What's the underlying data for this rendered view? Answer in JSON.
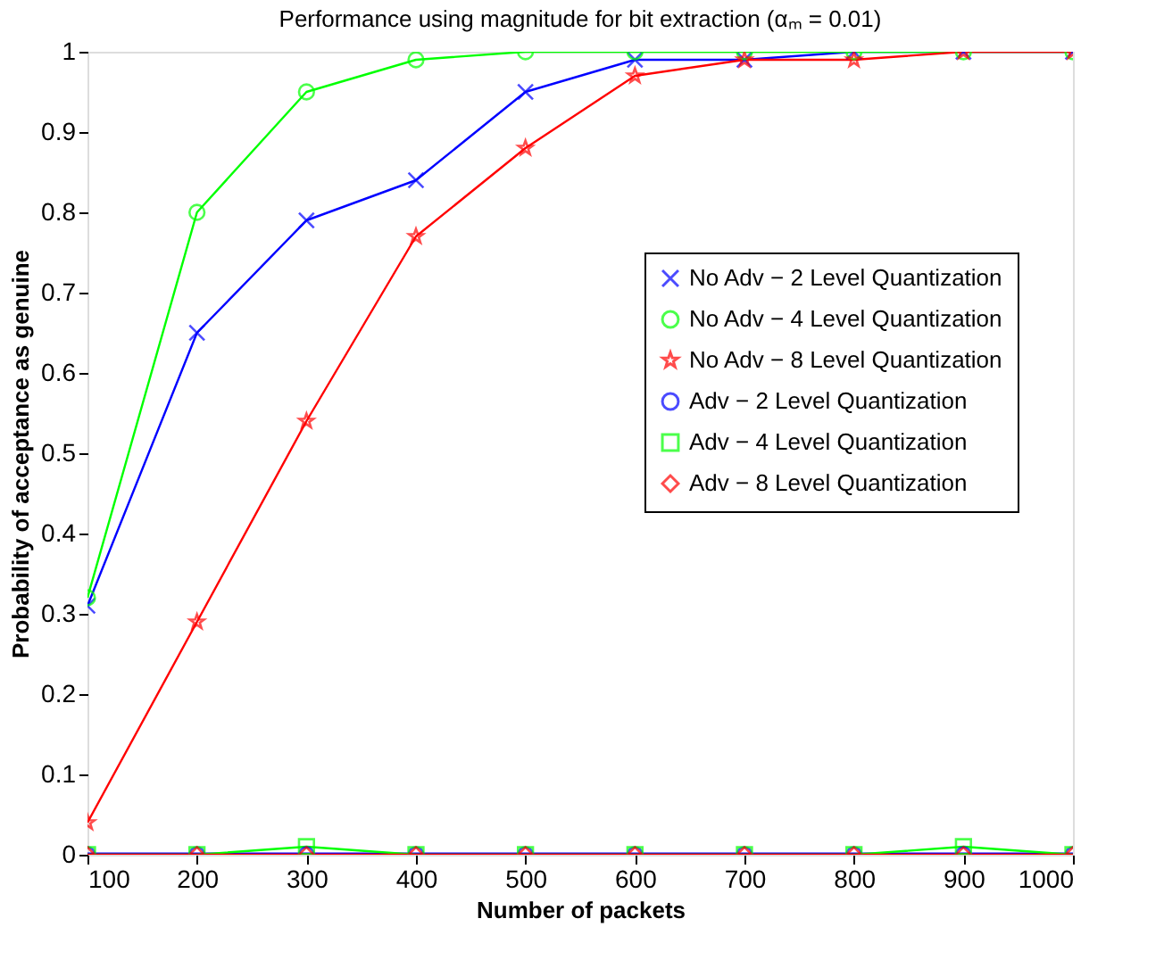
{
  "chart_data": {
    "type": "line",
    "title": "Performance using magnitude for bit extraction (αₘ = 0.01)",
    "xlabel": "Number of packets",
    "ylabel": "Probability of acceptance as genuine",
    "x": [
      100,
      200,
      300,
      400,
      500,
      600,
      700,
      800,
      900,
      1000
    ],
    "series": [
      {
        "name": "No Adv − 2 Level Quantization",
        "color": "#0000ff",
        "marker": "cross",
        "values": [
          0.31,
          0.65,
          0.79,
          0.84,
          0.95,
          0.99,
          0.99,
          1.0,
          1.0,
          1.0
        ]
      },
      {
        "name": "No Adv − 4 Level Quantization",
        "color": "#00ff00",
        "marker": "circle",
        "values": [
          0.32,
          0.8,
          0.95,
          0.99,
          1.0,
          1.0,
          1.0,
          1.0,
          1.0,
          1.0
        ]
      },
      {
        "name": "No Adv − 8 Level Quantization",
        "color": "#ff0000",
        "marker": "star",
        "values": [
          0.04,
          0.29,
          0.54,
          0.77,
          0.88,
          0.97,
          0.99,
          0.99,
          1.0,
          1.0
        ]
      },
      {
        "name": "Adv − 2 Level Quantization",
        "color": "#0000ff",
        "marker": "circle",
        "values": [
          0,
          0,
          0,
          0,
          0,
          0,
          0,
          0,
          0,
          0
        ]
      },
      {
        "name": "Adv − 4 Level Quantization",
        "color": "#00ff00",
        "marker": "square",
        "values": [
          0,
          0,
          0.01,
          0,
          0,
          0,
          0,
          0,
          0.01,
          0
        ]
      },
      {
        "name": "Adv − 8 Level Quantization",
        "color": "#ff0000",
        "marker": "diamond",
        "values": [
          0,
          0,
          0,
          0,
          0,
          0,
          0,
          0,
          0,
          0
        ]
      }
    ],
    "xlim": [
      100,
      1000
    ],
    "xticks": [
      100,
      200,
      300,
      400,
      500,
      600,
      700,
      800,
      900,
      1000
    ],
    "ylim": [
      0,
      1
    ],
    "yticks": [
      0,
      0.1,
      0.2,
      0.3,
      0.4,
      0.5,
      0.6,
      0.7,
      0.8,
      0.9,
      1
    ],
    "grid": false,
    "legend": "right",
    "line_style": "solid"
  }
}
